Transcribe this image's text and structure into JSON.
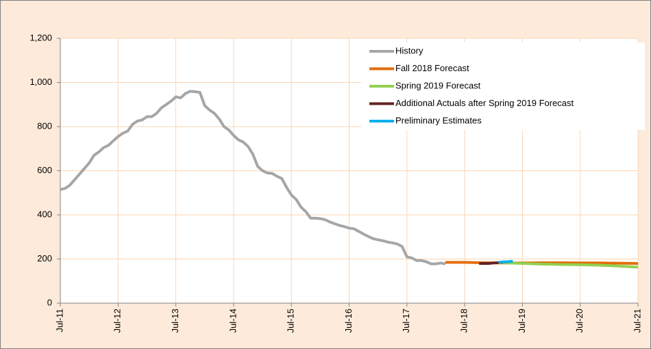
{
  "chart_data": {
    "type": "line",
    "xlim": [
      0,
      120
    ],
    "xticks": [
      {
        "value": 0,
        "label": "Jul-11"
      },
      {
        "value": 12,
        "label": "Jul-12"
      },
      {
        "value": 24,
        "label": "Jul-13"
      },
      {
        "value": 36,
        "label": "Jul-14"
      },
      {
        "value": 48,
        "label": "Jul-15"
      },
      {
        "value": 60,
        "label": "Jul-16"
      },
      {
        "value": 72,
        "label": "Jul-17"
      },
      {
        "value": 84,
        "label": "Jul-18"
      },
      {
        "value": 96,
        "label": "Jul-19"
      },
      {
        "value": 108,
        "label": "Jul-20"
      },
      {
        "value": 120,
        "label": "Jul-21"
      }
    ],
    "ylim": [
      0,
      1200
    ],
    "yticks": [
      0,
      200,
      400,
      600,
      800,
      {
        "value": 1000,
        "label": "1,000"
      },
      {
        "value": 1200,
        "label": "1,200"
      }
    ],
    "grid": true,
    "legend": "top-right",
    "series": [
      {
        "name": "History",
        "color": "#a6a6a6",
        "x": [
          0,
          1,
          2,
          3,
          4,
          5,
          6,
          7,
          8,
          9,
          10,
          11,
          12,
          13,
          14,
          15,
          16,
          17,
          18,
          19,
          20,
          21,
          22,
          23,
          24,
          25,
          26,
          27,
          28,
          29,
          30,
          31,
          32,
          33,
          34,
          35,
          36,
          37,
          38,
          39,
          40,
          41,
          42,
          43,
          44,
          45,
          46,
          47,
          48,
          49,
          50,
          51,
          52,
          53,
          54,
          55,
          56,
          57,
          58,
          59,
          60,
          61,
          62,
          63,
          64,
          65,
          66,
          67,
          68,
          69,
          70,
          71,
          72,
          73,
          74,
          75,
          76,
          77,
          78,
          79,
          80
        ],
        "values": [
          515,
          520,
          535,
          560,
          585,
          610,
          635,
          670,
          685,
          705,
          715,
          735,
          755,
          770,
          780,
          810,
          825,
          830,
          845,
          845,
          860,
          885,
          900,
          915,
          935,
          930,
          950,
          960,
          958,
          955,
          895,
          875,
          860,
          835,
          800,
          785,
          760,
          740,
          730,
          710,
          675,
          620,
          600,
          590,
          588,
          575,
          565,
          525,
          490,
          470,
          435,
          415,
          385,
          385,
          383,
          378,
          368,
          360,
          352,
          347,
          340,
          337,
          325,
          313,
          302,
          292,
          287,
          283,
          277,
          273,
          268,
          257,
          210,
          205,
          193,
          193,
          188,
          178,
          178,
          182,
          178
        ]
      },
      {
        "name": "Fall 2018 Forecast",
        "color": "#e36c0a",
        "x": [
          80,
          84,
          88,
          92,
          96,
          100,
          104,
          108,
          112,
          116,
          120
        ],
        "values": [
          185,
          185,
          183,
          182,
          182,
          183,
          183,
          182,
          182,
          181,
          180
        ]
      },
      {
        "name": "Spring 2019 Forecast",
        "color": "#92d050",
        "x": [
          92,
          96,
          100,
          104,
          108,
          112,
          116,
          120
        ],
        "values": [
          183,
          180,
          177,
          175,
          174,
          172,
          168,
          163
        ]
      },
      {
        "name": "Additional Actuals after Spring 2019 Forecast",
        "color": "#632523",
        "x": [
          87,
          88,
          89,
          90,
          91
        ],
        "values": [
          180,
          180,
          180,
          182,
          183
        ]
      },
      {
        "name": "Preliminary Estimates",
        "color": "#00b0f0",
        "x": [
          91,
          92,
          93,
          94
        ],
        "values": [
          185,
          187,
          188,
          190
        ]
      }
    ]
  }
}
